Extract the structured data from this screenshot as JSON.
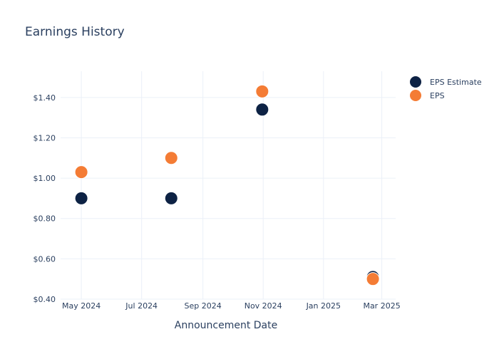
{
  "chart_data": {
    "type": "scatter",
    "title": "Earnings History",
    "xlabel": "Announcement Date",
    "ylabel": "",
    "x_ticks": [
      "May 2024",
      "Jul 2024",
      "Sep 2024",
      "Nov 2024",
      "Jan 2025",
      "Mar 2025"
    ],
    "y_ticks": [
      "$0.40",
      "$0.60",
      "$0.80",
      "$1.00",
      "$1.20",
      "$1.40"
    ],
    "xlim": [
      "2024-04-10",
      "2025-03-15"
    ],
    "ylim": [
      0.4,
      1.53
    ],
    "grid": true,
    "legend_position": "top-right",
    "series": [
      {
        "name": "EPS Estimate",
        "color": "#0d2244",
        "points": [
          {
            "x": "2024-05-01",
            "y": 0.9
          },
          {
            "x": "2024-07-31",
            "y": 0.9
          },
          {
            "x": "2024-10-31",
            "y": 1.34
          },
          {
            "x": "2025-02-20",
            "y": 0.51
          }
        ]
      },
      {
        "name": "EPS",
        "color": "#f47c35",
        "points": [
          {
            "x": "2024-05-01",
            "y": 1.03
          },
          {
            "x": "2024-07-31",
            "y": 1.1
          },
          {
            "x": "2024-10-31",
            "y": 1.43
          },
          {
            "x": "2025-02-20",
            "y": 0.5
          }
        ]
      }
    ]
  }
}
